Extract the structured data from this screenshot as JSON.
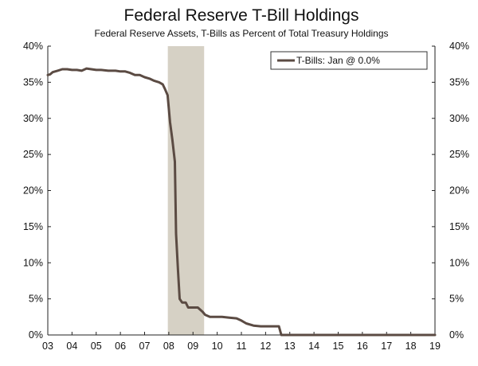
{
  "chart_data": {
    "type": "line",
    "title": "Federal Reserve T-Bill Holdings",
    "subtitle": "Federal Reserve Assets, T-Bills as Percent of Total Treasury Holdings",
    "xlabel": "",
    "ylabel": "",
    "x_tick_labels": [
      "03",
      "04",
      "05",
      "06",
      "07",
      "08",
      "09",
      "10",
      "11",
      "12",
      "13",
      "14",
      "15",
      "16",
      "17",
      "18",
      "19"
    ],
    "y_tick_labels": [
      "0%",
      "5%",
      "10%",
      "15%",
      "20%",
      "25%",
      "30%",
      "35%",
      "40%"
    ],
    "y_ticks": [
      0,
      5,
      10,
      15,
      20,
      25,
      30,
      35,
      40
    ],
    "xlim": [
      2003,
      2019
    ],
    "ylim": [
      0,
      40
    ],
    "grid": false,
    "legend_position": "top-right",
    "recession_shading": {
      "start": 2007.96,
      "end": 2009.46
    },
    "series": [
      {
        "name": "T-Bills: Jan @ 0.0%",
        "color": "#5b4b43",
        "points": [
          [
            2003.0,
            36.0
          ],
          [
            2003.1,
            36.1
          ],
          [
            2003.2,
            36.4
          ],
          [
            2003.4,
            36.6
          ],
          [
            2003.6,
            36.8
          ],
          [
            2003.8,
            36.8
          ],
          [
            2004.0,
            36.7
          ],
          [
            2004.2,
            36.7
          ],
          [
            2004.4,
            36.6
          ],
          [
            2004.6,
            36.9
          ],
          [
            2004.8,
            36.8
          ],
          [
            2005.0,
            36.7
          ],
          [
            2005.2,
            36.7
          ],
          [
            2005.5,
            36.6
          ],
          [
            2005.8,
            36.6
          ],
          [
            2006.0,
            36.5
          ],
          [
            2006.2,
            36.5
          ],
          [
            2006.4,
            36.3
          ],
          [
            2006.6,
            36.0
          ],
          [
            2006.8,
            36.0
          ],
          [
            2007.0,
            35.7
          ],
          [
            2007.2,
            35.5
          ],
          [
            2007.4,
            35.2
          ],
          [
            2007.6,
            35.0
          ],
          [
            2007.75,
            34.7
          ],
          [
            2007.85,
            34.0
          ],
          [
            2007.95,
            33.2
          ],
          [
            2008.05,
            29.5
          ],
          [
            2008.15,
            27.0
          ],
          [
            2008.25,
            24.0
          ],
          [
            2008.3,
            14.0
          ],
          [
            2008.38,
            9.0
          ],
          [
            2008.45,
            5.0
          ],
          [
            2008.55,
            4.5
          ],
          [
            2008.7,
            4.5
          ],
          [
            2008.8,
            3.8
          ],
          [
            2009.0,
            3.8
          ],
          [
            2009.2,
            3.8
          ],
          [
            2009.4,
            3.2
          ],
          [
            2009.5,
            2.8
          ],
          [
            2009.7,
            2.5
          ],
          [
            2009.9,
            2.5
          ],
          [
            2010.2,
            2.5
          ],
          [
            2010.5,
            2.4
          ],
          [
            2010.8,
            2.3
          ],
          [
            2011.0,
            2.0
          ],
          [
            2011.2,
            1.6
          ],
          [
            2011.5,
            1.3
          ],
          [
            2011.8,
            1.2
          ],
          [
            2012.0,
            1.2
          ],
          [
            2012.3,
            1.2
          ],
          [
            2012.55,
            1.2
          ],
          [
            2012.65,
            0.0
          ],
          [
            2013.0,
            0.0
          ],
          [
            2014.0,
            0.0
          ],
          [
            2015.0,
            0.0
          ],
          [
            2016.0,
            0.0
          ],
          [
            2017.0,
            0.0
          ],
          [
            2018.0,
            0.0
          ],
          [
            2019.0,
            0.0
          ]
        ]
      }
    ]
  }
}
